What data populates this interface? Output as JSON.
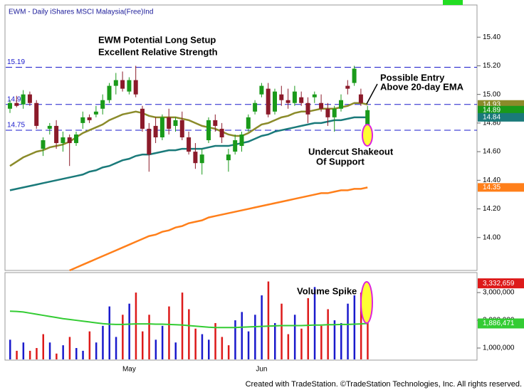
{
  "chart_data": [
    {
      "type": "candlestick",
      "title": "EWM - Daily  iShares MSCI Malaysia(Free)Ind",
      "annotations": [
        "EWM Potential Long Setup",
        "Excellent Relative Strength",
        "Possible Entry",
        "Above 20-day EMA",
        "Undercut Shakeout",
        "Of Support"
      ],
      "categories": [
        null,
        null,
        null,
        null,
        null,
        null,
        null,
        null,
        null,
        null,
        null,
        null,
        null,
        null,
        null,
        null,
        null,
        null,
        "May",
        null,
        null,
        null,
        null,
        null,
        null,
        null,
        null,
        null,
        null,
        null,
        null,
        null,
        null,
        null,
        null,
        null,
        null,
        null,
        "Jun",
        null,
        null,
        null,
        null,
        null,
        null,
        null,
        null,
        null,
        null,
        null,
        null,
        null,
        null,
        null,
        null
      ],
      "open": [
        14.9,
        14.94,
        14.93,
        15.0,
        14.94,
        14.62,
        14.76,
        14.78,
        14.66,
        14.7,
        14.66,
        14.8,
        14.84,
        14.86,
        14.9,
        14.96,
        15.06,
        15.1,
        15.02,
        15.1,
        14.9,
        14.76,
        14.78,
        14.7,
        14.84,
        14.78,
        14.82,
        14.7,
        14.6,
        14.52,
        14.68,
        14.82,
        14.76,
        14.54,
        14.6,
        14.64,
        14.76,
        14.88,
        15.0,
        15.04,
        14.88,
        15.0,
        14.96,
        14.94,
        14.98,
        14.94,
        14.98,
        14.94,
        14.9,
        14.84,
        14.9,
        15.06,
        15.08,
        15.0,
        14.78
      ],
      "high": [
        14.96,
        14.99,
        15.03,
        15.02,
        14.96,
        14.7,
        14.8,
        14.82,
        14.74,
        14.72,
        14.74,
        14.88,
        14.86,
        14.92,
        15.0,
        15.08,
        15.15,
        15.16,
        15.12,
        15.2,
        14.92,
        14.8,
        14.84,
        14.86,
        14.9,
        14.84,
        14.88,
        14.74,
        14.66,
        14.62,
        14.84,
        14.86,
        14.8,
        14.62,
        14.72,
        14.74,
        14.86,
        14.96,
        15.08,
        15.08,
        15.04,
        15.06,
        15.04,
        15.06,
        15.02,
        14.98,
        15.02,
        15.0,
        14.94,
        14.92,
        15.0,
        15.1,
        15.2,
        15.04,
        14.92
      ],
      "low": [
        14.87,
        14.91,
        14.9,
        14.92,
        14.76,
        14.57,
        14.72,
        14.62,
        14.6,
        14.5,
        14.64,
        14.76,
        14.8,
        14.84,
        14.86,
        14.94,
        15.0,
        15.02,
        15.0,
        14.98,
        14.74,
        14.46,
        14.66,
        14.68,
        14.72,
        14.74,
        14.68,
        14.58,
        14.48,
        14.44,
        14.66,
        14.74,
        14.66,
        14.46,
        14.58,
        14.6,
        14.74,
        14.86,
        14.98,
        14.84,
        14.86,
        14.92,
        14.9,
        14.92,
        14.92,
        14.8,
        14.94,
        14.88,
        14.78,
        14.74,
        14.88,
        15.0,
        15.06,
        14.92,
        14.7
      ],
      "close": [
        14.94,
        14.92,
        15.0,
        14.94,
        14.78,
        14.68,
        14.78,
        14.66,
        14.7,
        14.66,
        14.72,
        14.84,
        14.82,
        14.88,
        14.96,
        15.06,
        15.1,
        15.04,
        15.1,
        15.0,
        14.76,
        14.58,
        14.7,
        14.84,
        14.76,
        14.82,
        14.7,
        14.6,
        14.52,
        14.58,
        14.82,
        14.78,
        14.7,
        14.58,
        14.68,
        14.72,
        14.84,
        14.94,
        15.06,
        14.86,
        15.02,
        14.96,
        14.94,
        15.02,
        14.94,
        14.86,
        15.0,
        14.9,
        14.84,
        14.9,
        14.96,
        15.04,
        15.18,
        14.94,
        14.89
      ],
      "up_color": "#1a9a1a",
      "down_color": "#8b1a2a",
      "lines": [
        {
          "color": "#8b8b2a",
          "values": [
            14.5,
            14.53,
            14.56,
            14.58,
            14.6,
            14.61,
            14.63,
            14.64,
            14.65,
            14.67,
            14.7,
            14.73,
            14.75,
            14.77,
            14.79,
            14.82,
            14.84,
            14.86,
            14.87,
            14.88,
            14.87,
            14.85,
            14.84,
            14.84,
            14.84,
            14.84,
            14.83,
            14.82,
            14.8,
            14.78,
            14.77,
            14.76,
            14.74,
            14.72,
            14.71,
            14.71,
            14.73,
            14.76,
            14.79,
            14.8,
            14.82,
            14.84,
            14.85,
            14.87,
            14.88,
            14.88,
            14.89,
            14.9,
            14.9,
            14.9,
            14.91,
            14.92,
            14.94,
            14.94,
            14.93
          ]
        },
        {
          "color": "#1a7a7a",
          "values": [
            14.33,
            14.34,
            14.35,
            14.36,
            14.37,
            14.38,
            14.39,
            14.4,
            14.41,
            14.42,
            14.43,
            14.44,
            14.46,
            14.47,
            14.49,
            14.5,
            14.52,
            14.54,
            14.55,
            14.57,
            14.58,
            14.58,
            14.59,
            14.6,
            14.61,
            14.61,
            14.62,
            14.62,
            14.62,
            14.62,
            14.63,
            14.64,
            14.64,
            14.64,
            14.65,
            14.66,
            14.67,
            14.69,
            14.71,
            14.72,
            14.74,
            14.75,
            14.76,
            14.77,
            14.78,
            14.79,
            14.8,
            14.8,
            14.81,
            14.82,
            14.82,
            14.83,
            14.84,
            14.84,
            14.84
          ]
        },
        {
          "color": "#ff7f1a",
          "values": [
            null,
            null,
            null,
            null,
            null,
            null,
            null,
            null,
            null,
            13.77,
            13.79,
            13.81,
            13.83,
            13.85,
            13.87,
            13.89,
            13.91,
            13.93,
            13.95,
            13.97,
            13.99,
            14.01,
            14.02,
            14.04,
            14.05,
            14.07,
            14.08,
            14.1,
            14.11,
            14.12,
            14.14,
            14.15,
            14.16,
            14.17,
            14.18,
            14.19,
            14.2,
            14.21,
            14.22,
            14.23,
            14.24,
            14.25,
            14.26,
            14.27,
            14.28,
            14.29,
            14.3,
            14.31,
            14.31,
            14.32,
            14.33,
            14.33,
            14.34,
            14.34,
            14.35
          ]
        }
      ],
      "levels": [
        15.19,
        14.93,
        14.75
      ],
      "level_color": "#1a1acc",
      "ylim": [
        13.77,
        15.62
      ],
      "yticks": [
        {
          "value": 14.0,
          "label": "14.00"
        },
        {
          "value": 14.2,
          "label": "14.20"
        },
        {
          "value": 14.4,
          "label": "14.40"
        },
        {
          "value": 14.6,
          "label": "14.60"
        },
        {
          "value": 14.8,
          "label": "14.80"
        },
        {
          "value": 15.0,
          "label": "15.00"
        },
        {
          "value": 15.2,
          "label": "15.20"
        },
        {
          "value": 15.4,
          "label": "15.40"
        }
      ]
    },
    {
      "type": "bar",
      "annotations": [
        "Volume Spike"
      ],
      "values": [
        1300000,
        900000,
        1200000,
        900000,
        1000000,
        1500000,
        1200000,
        800000,
        1100000,
        1400000,
        1000000,
        900000,
        1600000,
        1200000,
        1800000,
        2500000,
        1400000,
        2200000,
        2600000,
        3000000,
        1600000,
        2200000,
        1300000,
        1800000,
        2500000,
        1200000,
        3000000,
        2400000,
        1700000,
        1500000,
        1300000,
        1900000,
        1400000,
        1100000,
        2000000,
        2300000,
        1600000,
        2200000,
        2900000,
        3400000,
        1900000,
        2600000,
        1500000,
        2200000,
        1700000,
        2800000,
        3200000,
        1800000,
        2400000,
        2000000,
        1900000,
        2600000,
        2900000,
        3000000,
        3332659
      ],
      "value_labels": [
        null,
        null,
        null,
        null,
        null,
        null,
        null,
        null,
        null,
        null,
        null,
        null,
        null,
        null,
        null,
        null,
        null,
        null,
        null,
        null,
        null,
        null,
        null,
        null,
        null,
        null,
        null,
        null,
        null,
        null,
        null,
        null,
        null,
        null,
        null,
        null,
        null,
        null,
        null,
        null,
        null,
        null,
        null,
        null,
        null,
        null,
        null,
        null,
        null,
        null,
        null,
        null,
        null,
        null,
        "3,332,659"
      ],
      "up_color": "#1a1acc",
      "down_color": "#dd1a1a",
      "average": {
        "color": "#33cc33",
        "values": [
          2330000,
          2320000,
          2300000,
          2260000,
          2220000,
          2180000,
          2140000,
          2100000,
          2060000,
          2030000,
          2000000,
          1970000,
          1940000,
          1910000,
          1880000,
          1860000,
          1850000,
          1850000,
          1860000,
          1870000,
          1870000,
          1870000,
          1860000,
          1860000,
          1850000,
          1840000,
          1830000,
          1810000,
          1790000,
          1770000,
          1750000,
          1740000,
          1740000,
          1740000,
          1740000,
          1750000,
          1760000,
          1770000,
          1780000,
          1790000,
          1800000,
          1810000,
          1810000,
          1810000,
          1810000,
          1820000,
          1830000,
          1830000,
          1840000,
          1840000,
          1850000,
          1850000,
          1860000,
          1870000,
          1886471
        ],
        "value_labels": [
          null,
          null,
          null,
          null,
          null,
          null,
          null,
          null,
          null,
          null,
          null,
          null,
          null,
          null,
          null,
          null,
          null,
          null,
          null,
          null,
          null,
          null,
          null,
          null,
          null,
          null,
          null,
          null,
          null,
          null,
          null,
          null,
          null,
          null,
          null,
          null,
          null,
          null,
          null,
          null,
          null,
          null,
          null,
          null,
          null,
          null,
          null,
          null,
          null,
          null,
          null,
          null,
          null,
          null,
          "1,886,471"
        ]
      },
      "ylim": [
        590000,
        3670000
      ],
      "yticks": [
        {
          "value": 1000000,
          "label": "1,000,000"
        },
        {
          "value": 2000000,
          "label": "2,000,000"
        },
        {
          "value": 3000000,
          "label": "3,000,000"
        }
      ]
    }
  ],
  "footer": "Created with TradeStation. ©TradeStation Technologies, Inc. All rights reserved."
}
